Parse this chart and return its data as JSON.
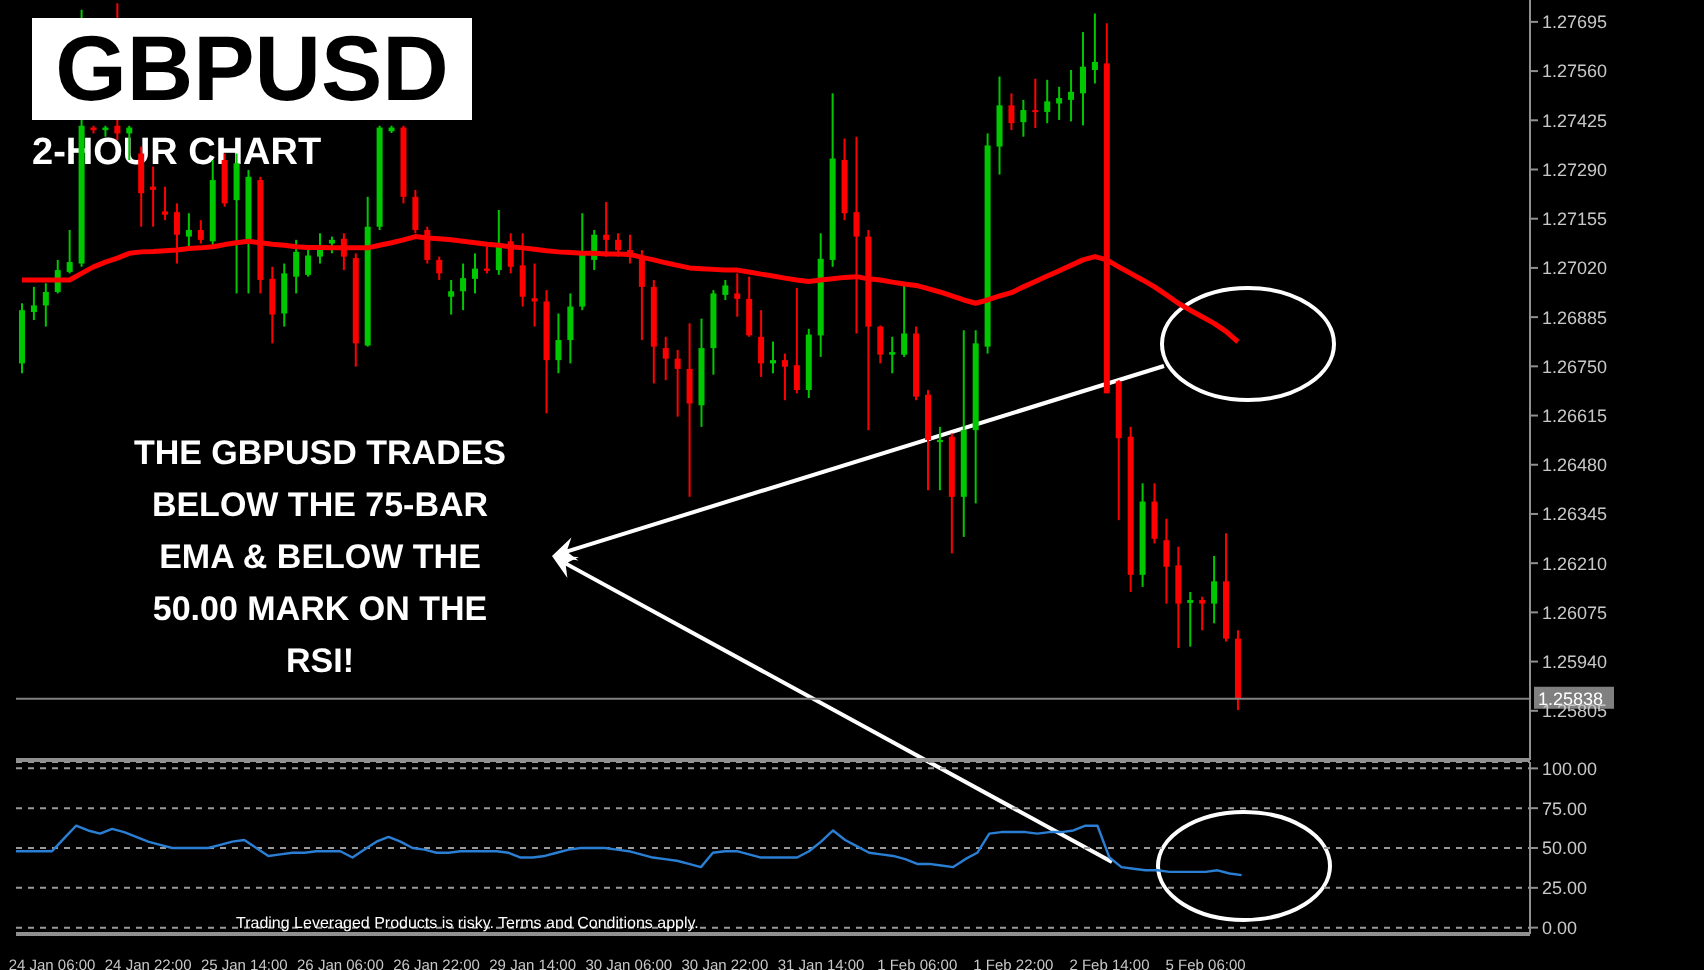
{
  "chart_data": [
    {
      "type": "candlestick",
      "title": "GBPUSD",
      "subtitle": "2-HOUR CHART",
      "categories": [
        null,
        null,
        null,
        null,
        null,
        null,
        null,
        null,
        null,
        null,
        null,
        null,
        null,
        null,
        null,
        null,
        null,
        null,
        null,
        null,
        null,
        null,
        null,
        null,
        null,
        null,
        null,
        null,
        null,
        null,
        null,
        null,
        null,
        null,
        null,
        null,
        null,
        null,
        null,
        null,
        null,
        null,
        null,
        null,
        null,
        null,
        null,
        null,
        null,
        null,
        null,
        null,
        null,
        null,
        null,
        null,
        null,
        null,
        null,
        null,
        null,
        null,
        null,
        null,
        null,
        null,
        null,
        null,
        null,
        null,
        null,
        null,
        null,
        null,
        null,
        null,
        null,
        null,
        null,
        null,
        null,
        null,
        null,
        null,
        null,
        null,
        null,
        null,
        null,
        null,
        null,
        null,
        null,
        null,
        null,
        null,
        null,
        null,
        null,
        null,
        null,
        null,
        null,
        null,
        null,
        null,
        null,
        null,
        null,
        null,
        null,
        null,
        null,
        null,
        null,
        null,
        null,
        null,
        null,
        null,
        null,
        null,
        null,
        null,
        null,
        null,
        null
      ],
      "ohlc": [
        [
          1.26758,
          1.26923,
          1.26731,
          1.26904
        ],
        [
          1.26899,
          1.26968,
          1.26877,
          1.26917
        ],
        [
          1.26917,
          1.26978,
          1.26859,
          1.26954
        ],
        [
          1.26954,
          1.27042,
          1.2695,
          1.27014
        ],
        [
          1.27009,
          1.27124,
          1.27005,
          1.27036
        ],
        [
          1.27032,
          1.27728,
          1.27023,
          1.2741
        ],
        [
          1.27405,
          1.2741,
          1.27389,
          1.27398
        ],
        [
          1.27398,
          1.2741,
          1.2738,
          1.27405
        ],
        [
          1.2741,
          1.27746,
          1.27371,
          1.27389
        ],
        [
          1.27389,
          1.2741,
          1.27316,
          1.27405
        ],
        [
          1.27334,
          1.27353,
          1.27133,
          1.27225
        ],
        [
          1.27243,
          1.27298,
          1.27133,
          1.27234
        ],
        [
          1.27175,
          1.27243,
          1.27151,
          1.27166
        ],
        [
          1.27173,
          1.27197,
          1.27032,
          1.27111
        ],
        [
          1.27106,
          1.2717,
          1.27078,
          1.27124
        ],
        [
          1.27124,
          1.27151,
          1.27087,
          1.27097
        ],
        [
          1.27093,
          1.27316,
          1.27078,
          1.27261
        ],
        [
          1.27316,
          1.27334,
          1.27188,
          1.27197
        ],
        [
          1.27206,
          1.27334,
          1.2695,
          1.27307
        ],
        [
          1.27097,
          1.27289,
          1.2695,
          1.2727
        ],
        [
          1.27261,
          1.2727,
          1.2695,
          1.26987
        ],
        [
          1.2699,
          1.27023,
          1.26813,
          1.26892
        ],
        [
          1.26895,
          1.27032,
          1.26859,
          1.27005
        ],
        [
          1.26996,
          1.27097,
          1.2695,
          1.27064
        ],
        [
          1.27001,
          1.27078,
          1.26996,
          1.27054
        ],
        [
          1.27051,
          1.27115,
          1.27032,
          1.27078
        ],
        [
          1.27087,
          1.27106,
          1.2706,
          1.27097
        ],
        [
          1.271,
          1.27115,
          1.27014,
          1.27051
        ],
        [
          1.27047,
          1.2706,
          1.26749,
          1.26813
        ],
        [
          1.26807,
          1.27215,
          1.26804,
          1.27133
        ],
        [
          1.27133,
          1.2741,
          1.27124,
          1.27405
        ],
        [
          1.27395,
          1.2741,
          1.2739,
          1.27405
        ],
        [
          1.27405,
          1.2741,
          1.27197,
          1.27215
        ],
        [
          1.27215,
          1.27234,
          1.27115,
          1.27124
        ],
        [
          1.27124,
          1.27133,
          1.27032,
          1.27042
        ],
        [
          1.27042,
          1.27051,
          1.26987,
          1.27005
        ],
        [
          1.26941,
          1.26987,
          1.26892,
          1.26956
        ],
        [
          1.26956,
          1.27032,
          1.26904,
          1.26992
        ],
        [
          1.2699,
          1.2706,
          1.2695,
          1.27018
        ],
        [
          1.27018,
          1.27078,
          1.27005,
          1.27012
        ],
        [
          1.27014,
          1.27179,
          1.27001,
          1.27078
        ],
        [
          1.27093,
          1.27115,
          1.27005,
          1.27023
        ],
        [
          1.27027,
          1.27115,
          1.26914,
          1.26941
        ],
        [
          1.26937,
          1.27032,
          1.26859,
          1.26928
        ],
        [
          1.26928,
          1.26959,
          1.26621,
          1.26767
        ],
        [
          1.26767,
          1.26895,
          1.26731,
          1.26822
        ],
        [
          1.26822,
          1.2695,
          1.26758,
          1.26914
        ],
        [
          1.26914,
          1.2717,
          1.26904,
          1.2706
        ],
        [
          1.27042,
          1.27124,
          1.27014,
          1.27111
        ],
        [
          1.27111,
          1.27201,
          1.27051,
          1.27097
        ],
        [
          1.27097,
          1.27115,
          1.27051,
          1.27069
        ],
        [
          1.27069,
          1.27111,
          1.27032,
          1.27051
        ],
        [
          1.27051,
          1.27069,
          1.26822,
          1.26968
        ],
        [
          1.26968,
          1.26987,
          1.26703,
          1.26804
        ],
        [
          1.268,
          1.26831,
          1.26712,
          1.26771
        ],
        [
          1.26771,
          1.26795,
          1.26612,
          1.26743
        ],
        [
          1.26743,
          1.26868,
          1.26392,
          1.26648
        ],
        [
          1.26643,
          1.26881,
          1.26584,
          1.268
        ],
        [
          1.268,
          1.26959,
          1.26727,
          1.2695
        ],
        [
          1.26946,
          1.26987,
          1.26932,
          1.26972
        ],
        [
          1.2695,
          1.27005,
          1.26886,
          1.26935
        ],
        [
          1.26935,
          1.26996,
          1.26831,
          1.26835
        ],
        [
          1.26831,
          1.26904,
          1.26721,
          1.26758
        ],
        [
          1.26758,
          1.26818,
          1.26731,
          1.26767
        ],
        [
          1.26767,
          1.26785,
          1.26657,
          1.26749
        ],
        [
          1.26753,
          1.26965,
          1.26676,
          1.26685
        ],
        [
          1.26685,
          1.26853,
          1.26663,
          1.26837
        ],
        [
          1.26835,
          1.27115,
          1.26776,
          1.27045
        ],
        [
          1.27042,
          1.27499,
          1.27023,
          1.2732
        ],
        [
          1.27316,
          1.27375,
          1.27151,
          1.2717
        ],
        [
          1.27173,
          1.2738,
          1.2684,
          1.27106
        ],
        [
          1.27106,
          1.27124,
          1.26575,
          1.26859
        ],
        [
          1.26859,
          1.26862,
          1.26758,
          1.26782
        ],
        [
          1.26782,
          1.26831,
          1.26731,
          1.26789
        ],
        [
          1.26782,
          1.26978,
          1.26776,
          1.2684
        ],
        [
          1.2684,
          1.26859,
          1.26657,
          1.26667
        ],
        [
          1.26672,
          1.26685,
          1.2641,
          1.26548
        ],
        [
          1.26542,
          1.26584,
          1.2641,
          1.26548
        ],
        [
          1.26557,
          1.26566,
          1.26237,
          1.26392
        ],
        [
          1.26392,
          1.26849,
          1.26282,
          1.26575
        ],
        [
          1.26575,
          1.26849,
          1.26374,
          1.26813
        ],
        [
          1.26804,
          1.27389,
          1.26785,
          1.27356
        ],
        [
          1.27353,
          1.27545,
          1.27276,
          1.27466
        ],
        [
          1.27466,
          1.27499,
          1.27398,
          1.27417
        ],
        [
          1.2742,
          1.27481,
          1.2738,
          1.27453
        ],
        [
          1.27453,
          1.27539,
          1.27404,
          1.2745
        ],
        [
          1.27448,
          1.27536,
          1.27417,
          1.27477
        ],
        [
          1.27471,
          1.27517,
          1.27426,
          1.27486
        ],
        [
          1.27481,
          1.27563,
          1.27422,
          1.27503
        ],
        [
          1.27499,
          1.27667,
          1.27411,
          1.27572
        ],
        [
          1.27563,
          1.27718,
          1.27526,
          1.27585
        ],
        [
          1.27581,
          1.27691,
          1.26676,
          1.26676
        ],
        [
          1.26709,
          1.26712,
          1.26328,
          1.26553
        ],
        [
          1.26557,
          1.26584,
          1.26131,
          1.26178
        ],
        [
          1.26178,
          1.26429,
          1.26145,
          1.26379
        ],
        [
          1.26379,
          1.26429,
          1.26264,
          1.26277
        ],
        [
          1.26273,
          1.26332,
          1.26099,
          1.262
        ],
        [
          1.26204,
          1.26255,
          1.25977,
          1.26099
        ],
        [
          1.26101,
          1.26131,
          1.25981,
          1.26109
        ],
        [
          1.26109,
          1.26118,
          1.26026,
          1.26099
        ],
        [
          1.26099,
          1.2623,
          1.26045,
          1.2616
        ],
        [
          1.2616,
          1.26292,
          1.25995,
          1.26003
        ],
        [
          1.26003,
          1.26026,
          1.25807,
          1.25838
        ],
        null,
        null,
        null,
        null,
        null,
        null,
        null,
        null,
        null,
        null,
        null,
        null,
        null,
        null,
        null,
        null,
        null,
        null,
        null,
        null,
        null,
        null,
        null,
        null
      ],
      "colors": [
        "#00c800",
        "#00c800",
        "#00c800",
        "#00c800",
        "#00c800",
        "#00c800",
        "#ff0000",
        "#00c800",
        "#ff0000",
        "#00c800",
        "#ff0000",
        "#ff0000",
        "#ff0000",
        "#ff0000",
        "#00c800",
        "#ff0000",
        "#00c800",
        "#ff0000",
        "#00c800",
        "#00c800",
        "#ff0000",
        "#ff0000",
        "#00c800",
        "#00c800",
        "#00c800",
        "#00c800",
        "#00c800",
        "#ff0000",
        "#ff0000",
        "#00c800",
        "#00c800",
        "#00c800",
        "#ff0000",
        "#ff0000",
        "#ff0000",
        "#ff0000",
        "#00c800",
        "#00c800",
        "#00c800",
        "#ff0000",
        "#00c800",
        "#ff0000",
        "#ff0000",
        "#ff0000",
        "#ff0000",
        "#00c800",
        "#00c800",
        "#00c800",
        "#00c800",
        "#ff0000",
        "#ff0000",
        "#ff0000",
        "#ff0000",
        "#ff0000",
        "#ff0000",
        "#ff0000",
        "#ff0000",
        "#00c800",
        "#00c800",
        "#00c800",
        "#ff0000",
        "#ff0000",
        "#ff0000",
        "#00c800",
        "#ff0000",
        "#ff0000",
        "#00c800",
        "#00c800",
        "#00c800",
        "#ff0000",
        "#ff0000",
        "#ff0000",
        "#ff0000",
        "#00c800",
        "#00c800",
        "#ff0000",
        "#ff0000",
        "#00c800",
        "#ff0000",
        "#00c800",
        "#00c800",
        "#00c800",
        "#00c800",
        "#ff0000",
        "#00c800",
        "#ff0000",
        "#00c800",
        "#00c800",
        "#00c800",
        "#00c800",
        "#00c800",
        "#ff0000",
        "#ff0000",
        "#ff0000",
        "#00c800",
        "#ff0000",
        "#ff0000",
        "#ff0000",
        "#00c800",
        "#ff0000",
        "#00c800",
        "#ff0000",
        "#ff0000",
        null,
        null,
        null,
        null,
        null,
        null,
        null,
        null,
        null,
        null,
        null,
        null,
        null,
        null,
        null,
        null,
        null,
        null,
        null,
        null,
        null,
        null,
        null,
        null
      ],
      "series": [
        {
          "type": "line",
          "color": "#ff0000",
          "values": [
            1.26987,
            1.26987,
            1.26987,
            1.26987,
            1.26987,
            1.27005,
            1.27023,
            1.27036,
            1.27047,
            1.2706,
            1.27064,
            1.27065,
            1.27067,
            1.27069,
            1.27073,
            1.27075,
            1.27078,
            1.27084,
            1.27089,
            1.27093,
            1.27089,
            1.27085,
            1.27082,
            1.27078,
            1.27076,
            1.27076,
            1.27075,
            1.27075,
            1.27075,
            1.27075,
            1.27082,
            1.27089,
            1.27097,
            1.27106,
            1.27102,
            1.271,
            1.27097,
            1.27093,
            1.27089,
            1.27085,
            1.27082,
            1.27078,
            1.27075,
            1.27071,
            1.27067,
            1.27064,
            1.27062,
            1.2706,
            1.2706,
            1.27058,
            1.27058,
            1.27057,
            1.27049,
            1.27042,
            1.27034,
            1.27027,
            1.2702,
            1.27018,
            1.27016,
            1.27014,
            1.27014,
            1.27009,
            1.27003,
            1.26998,
            1.26992,
            1.26987,
            1.26983,
            1.26987,
            1.2699,
            1.26994,
            1.26996,
            1.2699,
            1.26987,
            1.26981,
            1.26976,
            1.26972,
            1.26963,
            1.26954,
            1.26943,
            1.26932,
            1.26923,
            1.26932,
            1.26943,
            1.26952,
            1.26968,
            1.26983,
            1.26998,
            1.27012,
            1.27027,
            1.27042,
            1.27051,
            1.27042,
            1.27023,
            1.27005,
            1.26987,
            1.26968,
            1.26946,
            1.26923,
            1.26904,
            1.26886,
            1.26868,
            1.26846,
            1.26817,
            null,
            null,
            null,
            null,
            null,
            null,
            null,
            null,
            null,
            null,
            null,
            null,
            null,
            null,
            null,
            null,
            null,
            null,
            null,
            null,
            null,
            null,
            null,
            null
          ]
        }
      ],
      "ylim": [
        1.2567,
        1.27755
      ],
      "yticks": [
        1.27695,
        {
          "value": 1.2756,
          "label": "1.27560"
        },
        1.27425,
        {
          "value": 1.2729,
          "label": "1.27290"
        },
        1.27155,
        {
          "value": 1.2702,
          "label": "1.27020"
        },
        1.26885,
        {
          "value": 1.2675,
          "label": "1.26750"
        },
        1.26615,
        {
          "value": 1.2648,
          "label": "1.26480"
        },
        1.26345,
        {
          "value": 1.2621,
          "label": "1.26210"
        },
        1.26075,
        {
          "value": 1.2594,
          "label": "1.25940"
        },
        1.25805
      ],
      "tick_labels": "y",
      "ref_lines": [
        {
          "axis": "y",
          "value": 1.25838,
          "label": "1.25838",
          "color": "#808080"
        }
      ],
      "annotations": [
        "THE GBPUSD TRADES BELOW THE 75-BAR EMA & BELOW THE 50.00 MARK ON THE RSI!"
      ]
    },
    {
      "type": "line",
      "categories": [
        null,
        null,
        null,
        "24 Jan 06:00",
        null,
        null,
        null,
        null,
        null,
        null,
        null,
        "24 Jan 22:00",
        null,
        null,
        null,
        null,
        null,
        null,
        null,
        "25 Jan 14:00",
        null,
        null,
        null,
        null,
        null,
        null,
        null,
        "26 Jan 06:00",
        null,
        null,
        null,
        null,
        null,
        null,
        null,
        "26 Jan 22:00",
        null,
        null,
        null,
        null,
        null,
        null,
        null,
        "29 Jan 14:00",
        null,
        null,
        null,
        null,
        null,
        null,
        null,
        "30 Jan 06:00",
        null,
        null,
        null,
        null,
        null,
        null,
        null,
        "30 Jan 22:00",
        null,
        null,
        null,
        null,
        null,
        null,
        null,
        "31 Jan 14:00",
        null,
        null,
        null,
        null,
        null,
        null,
        null,
        "1 Feb 06:00",
        null,
        null,
        null,
        null,
        null,
        null,
        null,
        "1 Feb 22:00",
        null,
        null,
        null,
        null,
        null,
        null,
        null,
        "2 Feb 14:00",
        null,
        null,
        null,
        null,
        null,
        null,
        null,
        "5 Feb 06:00",
        null,
        null,
        null,
        null,
        null,
        null,
        null,
        null,
        null,
        null,
        null,
        null,
        null,
        null,
        null,
        null,
        null,
        null,
        null,
        null,
        null,
        null,
        null,
        null,
        null,
        null,
        null
      ],
      "series": [
        {
          "color": "#2a7fd4",
          "values": [
            48,
            48,
            48,
            48,
            56,
            64,
            61,
            59,
            62,
            60,
            57,
            54,
            52,
            50,
            50,
            50,
            50,
            52,
            54,
            55,
            50,
            45,
            46,
            47,
            47,
            48,
            48,
            48,
            44,
            49,
            54,
            57,
            54,
            50,
            49,
            47,
            47,
            48,
            48,
            48,
            48,
            47,
            44,
            44,
            45,
            47,
            49,
            50,
            50,
            50,
            49,
            48,
            46,
            44,
            43,
            42,
            40,
            38,
            47,
            48,
            48,
            46,
            44,
            44,
            44,
            44,
            48,
            54,
            61,
            55,
            51,
            47,
            46,
            45,
            43,
            40,
            40,
            39,
            38,
            43,
            47,
            59,
            60,
            60,
            60,
            59,
            60,
            60,
            61,
            64,
            64,
            44,
            38,
            37,
            36,
            36,
            35,
            35,
            35,
            35,
            36,
            34,
            33,
            null,
            null,
            null,
            null,
            null,
            null,
            null,
            null,
            null,
            null,
            null,
            null,
            null,
            null,
            null,
            null,
            null,
            null,
            null,
            null,
            null,
            null,
            null,
            null
          ]
        }
      ],
      "ylim": [
        -4,
        104
      ],
      "yticks": [
        {
          "value": 100,
          "label": "100.00"
        },
        {
          "value": 75,
          "label": "75.00"
        },
        {
          "value": 50,
          "label": "50.00"
        },
        {
          "value": 25,
          "label": "25.00"
        },
        {
          "value": 0,
          "label": "0.00"
        }
      ],
      "grid": "y",
      "annotations": [
        "Trading Leveraged Products is risky. Terms and Conditions apply."
      ]
    }
  ]
}
